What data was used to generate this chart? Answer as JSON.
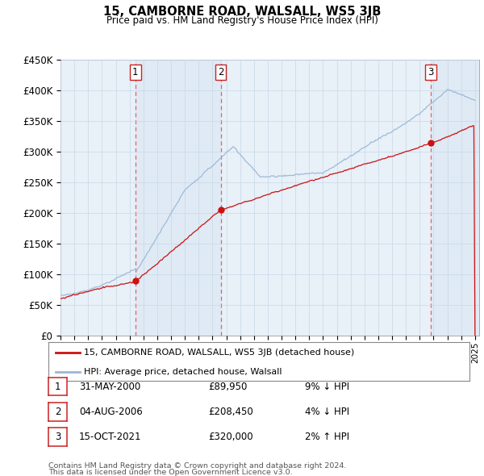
{
  "title": "15, CAMBORNE ROAD, WALSALL, WS5 3JB",
  "subtitle": "Price paid vs. HM Land Registry's House Price Index (HPI)",
  "ylim": [
    0,
    450000
  ],
  "yticks": [
    0,
    50000,
    100000,
    150000,
    200000,
    250000,
    300000,
    350000,
    400000,
    450000
  ],
  "ytick_labels": [
    "£0",
    "£50K",
    "£100K",
    "£150K",
    "£200K",
    "£250K",
    "£300K",
    "£350K",
    "£400K",
    "£450K"
  ],
  "hpi_color": "#9bb8d4",
  "price_color": "#cc1111",
  "marker_color": "#cc1111",
  "vline_color": "#dd6666",
  "shade_color": "#ddeeff",
  "background_color": "#ffffff",
  "chart_bg": "#e8f0f8",
  "grid_color": "#c8d8e8",
  "legend_label_price": "15, CAMBORNE ROAD, WALSALL, WS5 3JB (detached house)",
  "legend_label_hpi": "HPI: Average price, detached house, Walsall",
  "transactions": [
    {
      "num": 1,
      "date": "31-MAY-2000",
      "price": 89950,
      "pct": "9%",
      "dir": "↓",
      "year_x": 2000.42
    },
    {
      "num": 2,
      "date": "04-AUG-2006",
      "price": 208450,
      "pct": "4%",
      "dir": "↓",
      "year_x": 2006.59
    },
    {
      "num": 3,
      "date": "15-OCT-2021",
      "price": 320000,
      "pct": "2%",
      "dir": "↑",
      "year_x": 2021.79
    }
  ],
  "footnote1": "Contains HM Land Registry data © Crown copyright and database right 2024.",
  "footnote2": "This data is licensed under the Open Government Licence v3.0.",
  "xmin": 1995.0,
  "xmax": 2025.3
}
